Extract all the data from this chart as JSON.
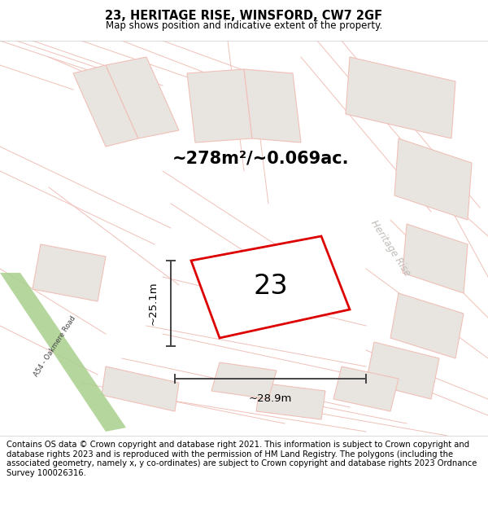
{
  "title": "23, HERITAGE RISE, WINSFORD, CW7 2GF",
  "subtitle": "Map shows position and indicative extent of the property.",
  "area_label": "~278m²/~0.069ac.",
  "plot_number": "23",
  "width_label": "~28.9m",
  "height_label": "~25.1m",
  "footer_text": "Contains OS data © Crown copyright and database right 2021. This information is subject to Crown copyright and database rights 2023 and is reproduced with the permission of HM Land Registry. The polygons (including the associated geometry, namely x, y co-ordinates) are subject to Crown copyright and database rights 2023 Ordnance Survey 100026316.",
  "bg_color": "#f7f5f2",
  "plot_fill": "#ffffff",
  "plot_edge": "#dd0000",
  "road_green_color": "#a8d08d",
  "road_green_alpha": 0.85,
  "neighbor_fill": "#e8e5e0",
  "neighbor_edge": "#f0c0b8",
  "street_line_color": "#f0c0b8",
  "street_label_color": "#c0bcb8",
  "dim_line_color": "#444444",
  "title_fontsize": 10.5,
  "subtitle_fontsize": 8.5,
  "area_fontsize": 15,
  "plot_num_fontsize": 24,
  "dim_fontsize": 9.5,
  "footer_fontsize": 7.2
}
